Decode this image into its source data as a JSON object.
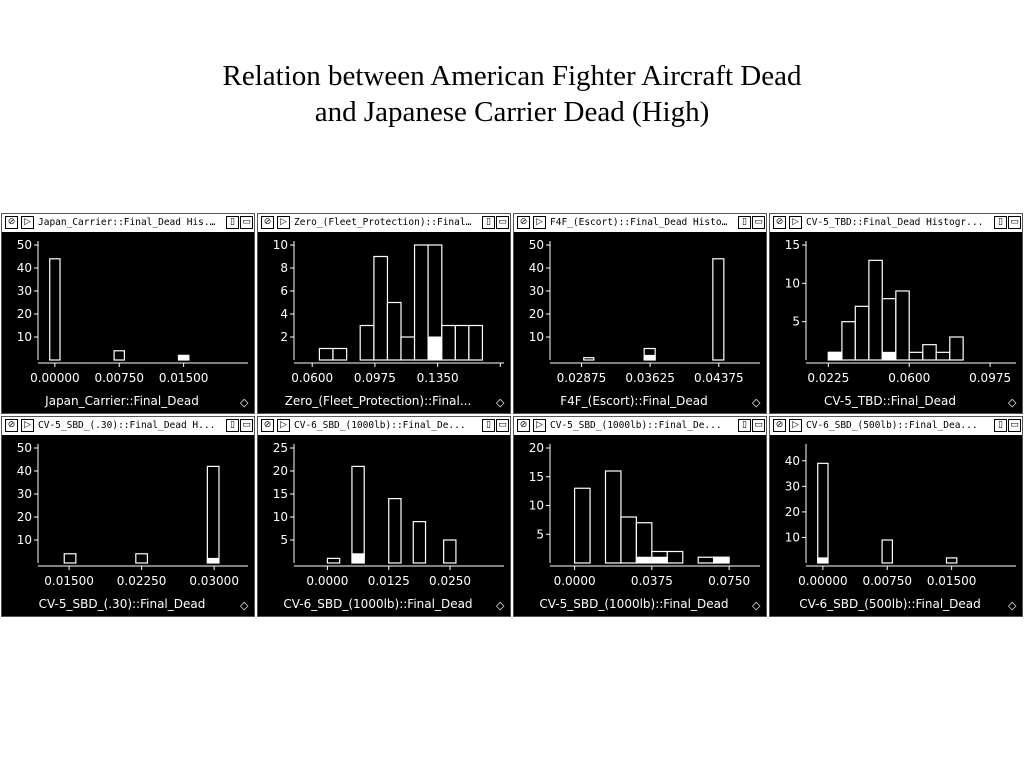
{
  "title": {
    "line1": "Relation between American Fighter Aircraft Dead",
    "line2": "and Japanese Carrier Dead (High)"
  },
  "colors": {
    "background": "#000000",
    "bars": "#ffffff",
    "text": "#ffffff"
  },
  "panels": [
    {
      "window_title": "Japan_Carrier::Final_Dead His...",
      "xlabel": "Japan_Carrier::Final_Dead"
    },
    {
      "window_title": "Zero_(Fleet_Protection)::Final...",
      "xlabel": "Zero_(Fleet_Protection)::Final..."
    },
    {
      "window_title": "F4F_(Escort)::Final_Dead Histo...",
      "xlabel": "F4F_(Escort)::Final_Dead"
    },
    {
      "window_title": "CV-5_TBD::Final_Dead Histogr...",
      "xlabel": "CV-5_TBD::Final_Dead"
    },
    {
      "window_title": "CV-5_SBD_(.30)::Final_Dead H...",
      "xlabel": "CV-5_SBD_(.30)::Final_Dead"
    },
    {
      "window_title": "CV-6_SBD_(1000lb)::Final_De...",
      "xlabel": "CV-6_SBD_(1000lb)::Final_Dead"
    },
    {
      "window_title": "CV-5_SBD_(1000lb)::Final_De...",
      "xlabel": "CV-5_SBD_(1000lb)::Final_Dead"
    },
    {
      "window_title": "CV-6_SBD_(500lb)::Final_Dea...",
      "xlabel": "CV-6_SBD_(500lb)::Final_Dead"
    }
  ],
  "chart_data": [
    {
      "type": "bar",
      "xlabel": "Japan_Carrier::Final_Dead",
      "xlim": [
        -0.0015,
        0.0225
      ],
      "ylim": [
        0,
        50
      ],
      "yticks": [
        10,
        20,
        30,
        40,
        50
      ],
      "ytick_labels": [
        "10",
        "20",
        "30",
        "40",
        "50"
      ],
      "xticks": [
        0,
        0.0075,
        0.015
      ],
      "xtick_labels": [
        "0.00000",
        "0.00750",
        "0.01500"
      ],
      "bins": [
        [
          -0.0006,
          0.0006,
          44,
          0
        ],
        [
          0.0069,
          0.0081,
          4,
          0
        ],
        [
          0.0144,
          0.0156,
          2,
          2
        ]
      ]
    },
    {
      "type": "bar",
      "xlabel": "Zero_(Fleet_Protection)::Final...",
      "xlim": [
        0.0515,
        0.1747
      ],
      "ylim": [
        0,
        10
      ],
      "yticks": [
        2,
        4,
        6,
        8,
        10
      ],
      "ytick_labels": [
        "2",
        "4",
        "6",
        "8",
        "10"
      ],
      "xticks": [
        0.06,
        0.0975,
        0.135,
        0.1725
      ],
      "xtick_labels": [
        "0.0600",
        "0.0975",
        "0.1350",
        ""
      ],
      "bins": [
        [
          0.0643,
          0.0724,
          1,
          0
        ],
        [
          0.0724,
          0.0806,
          1,
          0
        ],
        [
          0.0887,
          0.0969,
          3,
          0
        ],
        [
          0.0969,
          0.105,
          9,
          0
        ],
        [
          0.105,
          0.1131,
          5,
          0
        ],
        [
          0.1131,
          0.1212,
          2,
          0
        ],
        [
          0.1212,
          0.1293,
          10,
          0
        ],
        [
          0.1293,
          0.1375,
          10,
          2
        ],
        [
          0.1375,
          0.1456,
          3,
          0
        ],
        [
          0.1456,
          0.1537,
          3,
          0
        ],
        [
          0.1537,
          0.1618,
          3,
          0
        ]
      ]
    },
    {
      "type": "bar",
      "xlabel": "F4F_(Escort)::Final_Dead",
      "xlim": [
        0.02575,
        0.04825
      ],
      "ylim": [
        0,
        50
      ],
      "yticks": [
        10,
        20,
        30,
        40,
        50
      ],
      "ytick_labels": [
        "10",
        "20",
        "30",
        "40",
        "50"
      ],
      "xticks": [
        0.02875,
        0.03625,
        0.04375
      ],
      "xtick_labels": [
        "0.02875",
        "0.03625",
        "0.04375"
      ],
      "bins": [
        [
          0.029,
          0.0301,
          1,
          0
        ],
        [
          0.0356,
          0.0368,
          5,
          2
        ],
        [
          0.0431,
          0.0443,
          44,
          0
        ]
      ]
    },
    {
      "type": "bar",
      "xlabel": "CV-5_TBD::Final_Dead",
      "xlim": [
        0.014,
        0.1095
      ],
      "ylim": [
        0,
        15
      ],
      "yticks": [
        5,
        10,
        15
      ],
      "ytick_labels": [
        "5",
        "10",
        "15"
      ],
      "xticks": [
        0.0225,
        0.06,
        0.0975
      ],
      "xtick_labels": [
        "0.0225",
        "0.0600",
        "0.0975"
      ],
      "bins": [
        [
          0.0225,
          0.0288,
          1,
          1
        ],
        [
          0.0288,
          0.035,
          5,
          0
        ],
        [
          0.035,
          0.0413,
          7,
          0
        ],
        [
          0.0413,
          0.0475,
          13,
          0
        ],
        [
          0.0475,
          0.0538,
          8,
          1
        ],
        [
          0.0538,
          0.06,
          9,
          0
        ],
        [
          0.06,
          0.0663,
          1,
          0
        ],
        [
          0.0663,
          0.0725,
          2,
          0
        ],
        [
          0.0725,
          0.0788,
          1,
          0
        ],
        [
          0.0788,
          0.085,
          3,
          0
        ]
      ]
    },
    {
      "type": "bar",
      "xlabel": "CV-5_SBD_(.30)::Final_Dead",
      "xlim": [
        0.0122,
        0.0335
      ],
      "ylim": [
        0,
        50
      ],
      "yticks": [
        10,
        20,
        30,
        40,
        50
      ],
      "ytick_labels": [
        "10",
        "20",
        "30",
        "40",
        "50"
      ],
      "xticks": [
        0.015,
        0.0225,
        0.03
      ],
      "xtick_labels": [
        "0.01500",
        "0.02250",
        "0.03000"
      ],
      "bins": [
        [
          0.0145,
          0.0157,
          4,
          0
        ],
        [
          0.0219,
          0.0231,
          4,
          0
        ],
        [
          0.0293,
          0.0305,
          42,
          2
        ]
      ]
    },
    {
      "type": "bar",
      "xlabel": "CV-6_SBD_(1000lb)::Final_Dead",
      "xlim": [
        -0.006,
        0.036
      ],
      "ylim": [
        0,
        25
      ],
      "yticks": [
        5,
        10,
        15,
        20,
        25
      ],
      "ytick_labels": [
        "5",
        "10",
        "15",
        "20",
        "25"
      ],
      "xticks": [
        0,
        0.0125,
        0.025
      ],
      "xtick_labels": [
        "0.0000",
        "0.0125",
        "0.0250"
      ],
      "bins": [
        [
          0.0,
          0.0025,
          1,
          0
        ],
        [
          0.005,
          0.0075,
          21,
          2
        ],
        [
          0.0125,
          0.015,
          14,
          0
        ],
        [
          0.0175,
          0.02,
          9,
          0
        ],
        [
          0.0237,
          0.0262,
          5,
          0
        ]
      ]
    },
    {
      "type": "bar",
      "xlabel": "CV-5_SBD_(1000lb)::Final_Dead",
      "xlim": [
        -0.01,
        0.09
      ],
      "ylim": [
        0,
        20
      ],
      "yticks": [
        5,
        10,
        15,
        20
      ],
      "ytick_labels": [
        "5",
        "10",
        "15",
        "20"
      ],
      "xticks": [
        0,
        0.0375,
        0.075
      ],
      "xtick_labels": [
        "0.0000",
        "0.0375",
        "0.0750"
      ],
      "bins": [
        [
          0.0,
          0.0075,
          13,
          0
        ],
        [
          0.015,
          0.0225,
          16,
          0
        ],
        [
          0.0225,
          0.03,
          8,
          0
        ],
        [
          0.03,
          0.0375,
          7,
          1
        ],
        [
          0.0375,
          0.045,
          2,
          1
        ],
        [
          0.045,
          0.0525,
          2,
          0
        ],
        [
          0.06,
          0.0675,
          1,
          0
        ],
        [
          0.0675,
          0.075,
          1,
          1
        ]
      ]
    },
    {
      "type": "bar",
      "xlabel": "CV-6_SBD_(500lb)::Final_Dead",
      "xlim": [
        -0.0015,
        0.0225
      ],
      "ylim": [
        0,
        45
      ],
      "yticks": [
        10,
        20,
        30,
        40
      ],
      "ytick_labels": [
        "10",
        "20",
        "30",
        "40"
      ],
      "xticks": [
        0,
        0.0075,
        0.015
      ],
      "xtick_labels": [
        "0.00000",
        "0.00750",
        "0.01500"
      ],
      "bins": [
        [
          -0.0006,
          0.0006,
          39,
          2
        ],
        [
          0.0069,
          0.0081,
          9,
          0
        ],
        [
          0.0144,
          0.0156,
          2,
          0
        ]
      ]
    }
  ]
}
